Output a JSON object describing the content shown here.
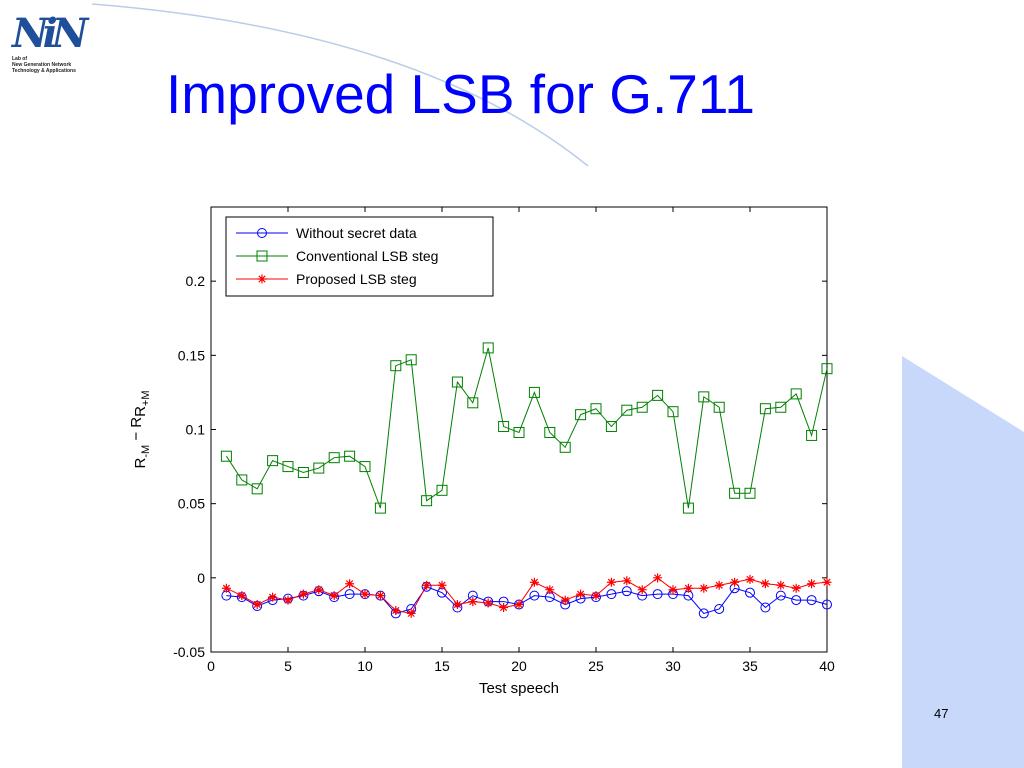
{
  "slide": {
    "title": "Improved LSB for G.711",
    "page_number": "47",
    "logo": {
      "mark": "NiN",
      "text": "Lab of\nNew Generation Network\nTechnology & Applications"
    }
  },
  "colors": {
    "title": "#0000ff",
    "decor_blue": "#c8d8fb",
    "curve": "#b9cde8"
  },
  "chart_data": {
    "type": "line",
    "xlabel": "Test speech",
    "ylabel_main": "R",
    "ylabel_sub1": "-M",
    "ylabel_op": " − R",
    "ylabel_sub2": "+M",
    "xlim": [
      0,
      40
    ],
    "ylim": [
      -0.05,
      0.25
    ],
    "x_ticks": [
      0,
      5,
      10,
      15,
      20,
      25,
      30,
      35,
      40
    ],
    "x_tick_labels": [
      "0",
      "5",
      "10",
      "15",
      "20",
      "25",
      "30",
      "35",
      "40"
    ],
    "y_ticks": [
      -0.05,
      0,
      0.05,
      0.1,
      0.15,
      0.2
    ],
    "y_tick_labels": [
      "-0.05",
      "0",
      "0.05",
      "0.1",
      "0.15",
      "0.2"
    ],
    "grid": false,
    "legend_position": "top-left",
    "x": [
      1,
      2,
      3,
      4,
      5,
      6,
      7,
      8,
      9,
      10,
      11,
      12,
      13,
      14,
      15,
      16,
      17,
      18,
      19,
      20,
      21,
      22,
      23,
      24,
      25,
      26,
      27,
      28,
      29,
      30,
      31,
      32,
      33,
      34,
      35,
      36,
      37,
      38,
      39,
      40
    ],
    "series": [
      {
        "name": "Without secret data",
        "color": "#0000ff",
        "marker": "circle",
        "values": [
          -0.012,
          -0.013,
          -0.019,
          -0.015,
          -0.014,
          -0.012,
          -0.009,
          -0.013,
          -0.011,
          -0.011,
          -0.012,
          -0.024,
          -0.021,
          -0.006,
          -0.01,
          -0.02,
          -0.012,
          -0.016,
          -0.016,
          -0.018,
          -0.012,
          -0.013,
          -0.018,
          -0.014,
          -0.013,
          -0.011,
          -0.009,
          -0.012,
          -0.011,
          -0.011,
          -0.012,
          -0.024,
          -0.021,
          -0.007,
          -0.01,
          -0.02,
          -0.012,
          -0.015,
          -0.015,
          -0.018
        ]
      },
      {
        "name": "Conventional LSB steg",
        "color": "#008000",
        "marker": "square",
        "values": [
          0.082,
          0.066,
          0.06,
          0.079,
          0.075,
          0.071,
          0.074,
          0.081,
          0.082,
          0.075,
          0.047,
          0.143,
          0.147,
          0.052,
          0.059,
          0.132,
          0.118,
          0.155,
          0.102,
          0.098,
          0.125,
          0.098,
          0.088,
          0.11,
          0.114,
          0.102,
          0.113,
          0.115,
          0.123,
          0.112,
          0.047,
          0.122,
          0.115,
          0.057,
          0.057,
          0.114,
          0.115,
          0.124,
          0.096,
          0.141
        ]
      },
      {
        "name": "Proposed LSB steg",
        "color": "#ff0000",
        "marker": "star",
        "values": [
          -0.007,
          -0.012,
          -0.018,
          -0.013,
          -0.015,
          -0.011,
          -0.008,
          -0.012,
          -0.004,
          -0.011,
          -0.012,
          -0.022,
          -0.024,
          -0.005,
          -0.005,
          -0.018,
          -0.016,
          -0.017,
          -0.02,
          -0.018,
          -0.003,
          -0.008,
          -0.015,
          -0.011,
          -0.012,
          -0.003,
          -0.002,
          -0.008,
          0.0,
          -0.008,
          -0.007,
          -0.007,
          -0.005,
          -0.003,
          -0.001,
          -0.004,
          -0.005,
          -0.007,
          -0.004,
          -0.003
        ]
      }
    ]
  }
}
